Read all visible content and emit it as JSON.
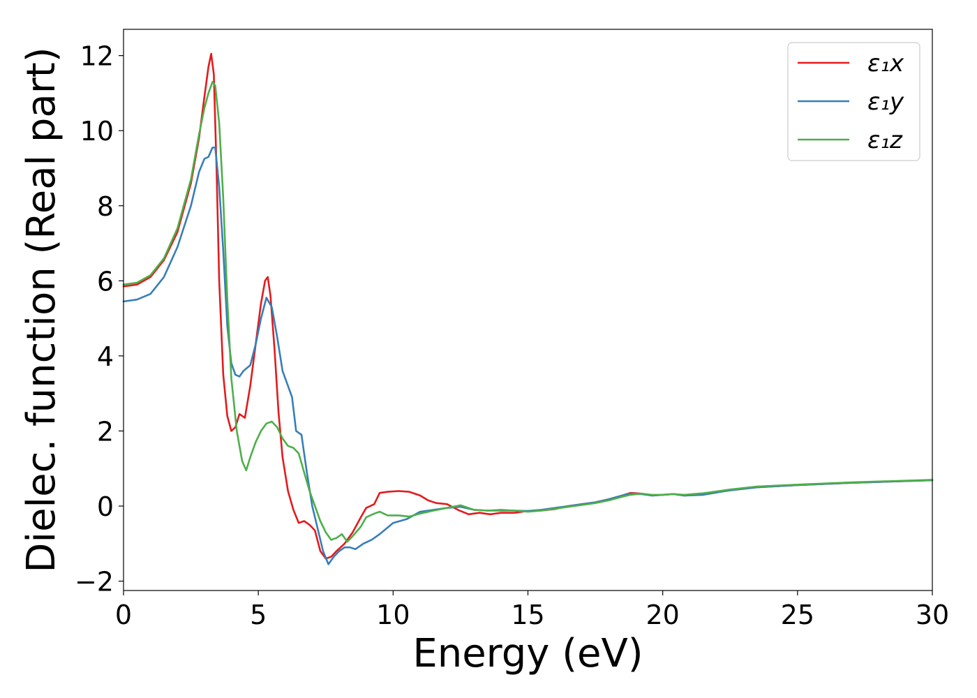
{
  "chart_data": {
    "type": "line",
    "title": "",
    "xlabel": "Energy (eV)",
    "ylabel": "Dielec. function (Real part)",
    "xlim": [
      0,
      30
    ],
    "ylim": [
      -2.25,
      12.7
    ],
    "xticks": [
      0,
      5,
      10,
      15,
      20,
      25,
      30
    ],
    "yticks": [
      -2,
      0,
      2,
      4,
      6,
      8,
      10,
      12
    ],
    "ytick_labels": [
      "−2",
      "0",
      "2",
      "4",
      "6",
      "8",
      "10",
      "12"
    ],
    "grid": false,
    "legend_position": "top-right",
    "series": [
      {
        "name": "ε₁x",
        "color": "#e41a1c",
        "points": [
          [
            0,
            5.85
          ],
          [
            0.5,
            5.9
          ],
          [
            1,
            6.1
          ],
          [
            1.5,
            6.55
          ],
          [
            2,
            7.3
          ],
          [
            2.5,
            8.6
          ],
          [
            2.8,
            9.8
          ],
          [
            3.0,
            10.9
          ],
          [
            3.15,
            11.7
          ],
          [
            3.25,
            12.05
          ],
          [
            3.35,
            11.5
          ],
          [
            3.45,
            9.0
          ],
          [
            3.55,
            6.0
          ],
          [
            3.7,
            3.5
          ],
          [
            3.85,
            2.4
          ],
          [
            4.0,
            2.0
          ],
          [
            4.15,
            2.1
          ],
          [
            4.3,
            2.45
          ],
          [
            4.5,
            2.35
          ],
          [
            4.7,
            3.2
          ],
          [
            4.9,
            4.3
          ],
          [
            5.1,
            5.4
          ],
          [
            5.25,
            6.0
          ],
          [
            5.35,
            6.1
          ],
          [
            5.45,
            5.6
          ],
          [
            5.6,
            4.2
          ],
          [
            5.75,
            2.5
          ],
          [
            5.9,
            1.3
          ],
          [
            6.1,
            0.4
          ],
          [
            6.3,
            -0.1
          ],
          [
            6.5,
            -0.45
          ],
          [
            6.7,
            -0.4
          ],
          [
            6.9,
            -0.5
          ],
          [
            7.1,
            -0.65
          ],
          [
            7.3,
            -1.2
          ],
          [
            7.5,
            -1.4
          ],
          [
            7.7,
            -1.35
          ],
          [
            7.9,
            -1.2
          ],
          [
            8.2,
            -1.0
          ],
          [
            8.5,
            -0.7
          ],
          [
            8.8,
            -0.3
          ],
          [
            9.0,
            -0.05
          ],
          [
            9.3,
            0.05
          ],
          [
            9.5,
            0.35
          ],
          [
            9.8,
            0.38
          ],
          [
            10.2,
            0.4
          ],
          [
            10.6,
            0.38
          ],
          [
            11.0,
            0.28
          ],
          [
            11.3,
            0.15
          ],
          [
            11.6,
            0.08
          ],
          [
            12.0,
            0.05
          ],
          [
            12.4,
            -0.1
          ],
          [
            12.8,
            -0.22
          ],
          [
            13.2,
            -0.18
          ],
          [
            13.6,
            -0.22
          ],
          [
            14.0,
            -0.18
          ],
          [
            14.5,
            -0.18
          ],
          [
            15.0,
            -0.13
          ],
          [
            15.5,
            -0.12
          ],
          [
            16.0,
            -0.08
          ],
          [
            16.5,
            0.0
          ],
          [
            17.0,
            0.05
          ],
          [
            17.5,
            0.1
          ],
          [
            18.0,
            0.18
          ],
          [
            18.5,
            0.28
          ],
          [
            18.8,
            0.35
          ],
          [
            19.2,
            0.33
          ],
          [
            19.6,
            0.28
          ],
          [
            20.0,
            0.3
          ],
          [
            20.4,
            0.32
          ],
          [
            20.8,
            0.28
          ],
          [
            21.5,
            0.32
          ],
          [
            22.5,
            0.42
          ],
          [
            23.5,
            0.5
          ],
          [
            25,
            0.56
          ],
          [
            27,
            0.62
          ],
          [
            30,
            0.69
          ]
        ]
      },
      {
        "name": "ε₁y",
        "color": "#377eb8",
        "points": [
          [
            0,
            5.45
          ],
          [
            0.5,
            5.5
          ],
          [
            1,
            5.65
          ],
          [
            1.5,
            6.1
          ],
          [
            2,
            6.9
          ],
          [
            2.5,
            8.0
          ],
          [
            2.8,
            8.9
          ],
          [
            3.0,
            9.25
          ],
          [
            3.15,
            9.3
          ],
          [
            3.3,
            9.55
          ],
          [
            3.4,
            9.55
          ],
          [
            3.55,
            8.5
          ],
          [
            3.7,
            6.8
          ],
          [
            3.85,
            4.8
          ],
          [
            4.0,
            3.8
          ],
          [
            4.15,
            3.5
          ],
          [
            4.3,
            3.45
          ],
          [
            4.45,
            3.6
          ],
          [
            4.7,
            3.75
          ],
          [
            4.9,
            4.3
          ],
          [
            5.1,
            5.0
          ],
          [
            5.3,
            5.55
          ],
          [
            5.5,
            5.3
          ],
          [
            5.7,
            4.5
          ],
          [
            5.9,
            3.6
          ],
          [
            6.1,
            3.2
          ],
          [
            6.25,
            2.9
          ],
          [
            6.4,
            2.0
          ],
          [
            6.6,
            1.9
          ],
          [
            6.8,
            0.9
          ],
          [
            7.0,
            0.0
          ],
          [
            7.2,
            -0.6
          ],
          [
            7.4,
            -1.2
          ],
          [
            7.6,
            -1.55
          ],
          [
            7.8,
            -1.35
          ],
          [
            8.0,
            -1.2
          ],
          [
            8.2,
            -1.1
          ],
          [
            8.4,
            -1.1
          ],
          [
            8.6,
            -1.15
          ],
          [
            8.9,
            -1.0
          ],
          [
            9.2,
            -0.9
          ],
          [
            9.5,
            -0.75
          ],
          [
            10.0,
            -0.45
          ],
          [
            10.5,
            -0.35
          ],
          [
            11.0,
            -0.15
          ],
          [
            11.5,
            -0.1
          ],
          [
            12.0,
            -0.05
          ],
          [
            12.5,
            -0.02
          ],
          [
            13.0,
            -0.1
          ],
          [
            13.5,
            -0.12
          ],
          [
            14.0,
            -0.12
          ],
          [
            14.5,
            -0.12
          ],
          [
            15.0,
            -0.13
          ],
          [
            15.5,
            -0.1
          ],
          [
            16.0,
            -0.05
          ],
          [
            16.5,
            0.0
          ],
          [
            17.0,
            0.05
          ],
          [
            17.5,
            0.1
          ],
          [
            18.0,
            0.18
          ],
          [
            18.5,
            0.28
          ],
          [
            18.8,
            0.33
          ],
          [
            19.2,
            0.32
          ],
          [
            19.6,
            0.28
          ],
          [
            20.0,
            0.3
          ],
          [
            20.4,
            0.32
          ],
          [
            20.8,
            0.28
          ],
          [
            21.5,
            0.3
          ],
          [
            22.5,
            0.42
          ],
          [
            23.5,
            0.5
          ],
          [
            25,
            0.56
          ],
          [
            27,
            0.62
          ],
          [
            30,
            0.69
          ]
        ]
      },
      {
        "name": "ε₁z",
        "color": "#4daf4a",
        "points": [
          [
            0,
            5.9
          ],
          [
            0.5,
            5.95
          ],
          [
            1,
            6.15
          ],
          [
            1.5,
            6.6
          ],
          [
            2,
            7.4
          ],
          [
            2.5,
            8.7
          ],
          [
            2.8,
            9.9
          ],
          [
            3.0,
            10.6
          ],
          [
            3.15,
            11.0
          ],
          [
            3.3,
            11.3
          ],
          [
            3.4,
            11.2
          ],
          [
            3.55,
            10.2
          ],
          [
            3.7,
            8.2
          ],
          [
            3.85,
            5.5
          ],
          [
            4.0,
            3.4
          ],
          [
            4.2,
            2.0
          ],
          [
            4.4,
            1.2
          ],
          [
            4.55,
            0.95
          ],
          [
            4.7,
            1.3
          ],
          [
            4.9,
            1.7
          ],
          [
            5.1,
            2.0
          ],
          [
            5.3,
            2.2
          ],
          [
            5.5,
            2.25
          ],
          [
            5.7,
            2.1
          ],
          [
            5.9,
            1.8
          ],
          [
            6.1,
            1.6
          ],
          [
            6.3,
            1.55
          ],
          [
            6.5,
            1.4
          ],
          [
            6.7,
            0.9
          ],
          [
            6.9,
            0.4
          ],
          [
            7.1,
            0.0
          ],
          [
            7.3,
            -0.4
          ],
          [
            7.5,
            -0.7
          ],
          [
            7.7,
            -0.9
          ],
          [
            7.9,
            -0.85
          ],
          [
            8.1,
            -0.75
          ],
          [
            8.3,
            -0.95
          ],
          [
            8.5,
            -0.8
          ],
          [
            8.8,
            -0.55
          ],
          [
            9.0,
            -0.3
          ],
          [
            9.3,
            -0.2
          ],
          [
            9.5,
            -0.15
          ],
          [
            9.8,
            -0.25
          ],
          [
            10.2,
            -0.25
          ],
          [
            10.6,
            -0.28
          ],
          [
            11.0,
            -0.2
          ],
          [
            11.5,
            -0.12
          ],
          [
            12.0,
            -0.05
          ],
          [
            12.5,
            0.02
          ],
          [
            13.0,
            -0.1
          ],
          [
            13.5,
            -0.12
          ],
          [
            14.0,
            -0.1
          ],
          [
            14.5,
            -0.12
          ],
          [
            15.0,
            -0.15
          ],
          [
            15.5,
            -0.12
          ],
          [
            16.0,
            -0.07
          ],
          [
            16.5,
            -0.02
          ],
          [
            17.0,
            0.03
          ],
          [
            17.5,
            0.08
          ],
          [
            18.0,
            0.15
          ],
          [
            18.5,
            0.25
          ],
          [
            18.8,
            0.3
          ],
          [
            19.2,
            0.33
          ],
          [
            19.6,
            0.3
          ],
          [
            20.0,
            0.3
          ],
          [
            20.4,
            0.32
          ],
          [
            20.8,
            0.3
          ],
          [
            21.5,
            0.34
          ],
          [
            22.5,
            0.44
          ],
          [
            23.5,
            0.52
          ],
          [
            25,
            0.57
          ],
          [
            27,
            0.63
          ],
          [
            30,
            0.7
          ]
        ]
      }
    ]
  }
}
